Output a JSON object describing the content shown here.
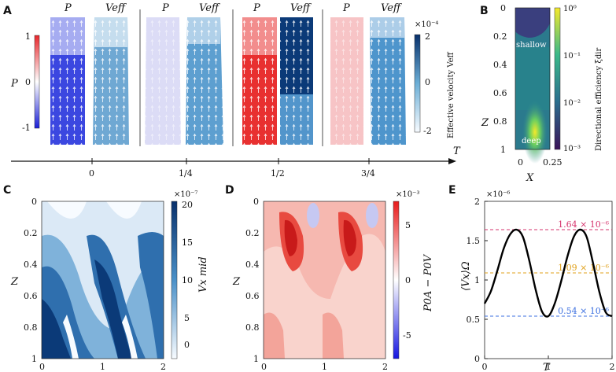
{
  "panels": {
    "A": {
      "label": "A",
      "column_titles": [
        "P",
        "Veff",
        "P",
        "Veff",
        "P",
        "Veff",
        "P",
        "Veff"
      ],
      "time_labels": [
        "0",
        "1/4",
        "1/2",
        "3/4"
      ],
      "time_axis_label": "T",
      "left_colorbar": {
        "label": "P",
        "ticks": [
          "1",
          "0",
          "-1"
        ],
        "colors": [
          "#e8262b",
          "#ffffff",
          "#1a1fd6"
        ]
      },
      "right_colorbar": {
        "label": "Effective velocity Veff",
        "exponent": "×10⁻⁴",
        "ticks": [
          "2",
          "0",
          "-2"
        ],
        "colors": [
          "#08306b",
          "#6baed6",
          "#f7fbff"
        ]
      },
      "snapshot_P_colors": [
        "#3b47e0",
        "#dcdcf6",
        "#e83030",
        "#f7c4c6"
      ],
      "snapshot_V_colors": [
        "#6fa8d3",
        "#5d9fd0",
        "#0b3a78",
        "#4e95cc"
      ]
    },
    "B": {
      "label": "B",
      "xlabel": "X",
      "ylabel": "Z",
      "xticks": [
        "0",
        "0.25"
      ],
      "yticks": [
        "0",
        "0.2",
        "0.4",
        "0.6",
        "0.8",
        "1"
      ],
      "annotations": [
        "shallow",
        "deep"
      ],
      "colorbar": {
        "label": "Directional efficiency ξdir",
        "ticks": [
          "10⁰",
          "10⁻¹",
          "10⁻²",
          "10⁻³"
        ]
      }
    },
    "C": {
      "label": "C",
      "xlabel": "T",
      "ylabel": "Z",
      "xticks": [
        "0",
        "1",
        "2"
      ],
      "yticks": [
        "0",
        "0.2",
        "0.4",
        "0.6",
        "0.8",
        "1"
      ],
      "colorbar": {
        "label": "Vx mid",
        "exponent": "×10⁻⁷",
        "ticks": [
          "20",
          "15",
          "10",
          "5",
          "0"
        ]
      }
    },
    "D": {
      "label": "D",
      "xlabel": "T",
      "ylabel": "Z",
      "xticks": [
        "0",
        "1",
        "2"
      ],
      "yticks": [
        "0",
        "0.2",
        "0.4",
        "0.6",
        "0.8",
        "1"
      ],
      "colorbar": {
        "label": "P0A − P0V",
        "exponent": "×10⁻³",
        "ticks": [
          "5",
          "0",
          "-5"
        ]
      }
    },
    "E": {
      "label": "E"
    }
  },
  "chart_data": {
    "type": "line",
    "title": "",
    "xlabel": "T",
    "ylabel": "⟨Vx⟩Ω",
    "exponent": "×10⁻⁶",
    "xlim": [
      0,
      2
    ],
    "ylim": [
      0,
      2
    ],
    "xticks": [
      "0",
      "1",
      "2"
    ],
    "yticks": [
      "0",
      "0.5",
      "1",
      "1.5",
      "2"
    ],
    "series": [
      {
        "name": "⟨Vx⟩Ω",
        "color": "#000000",
        "x": [
          0,
          0.1,
          0.2,
          0.3,
          0.4,
          0.5,
          0.6,
          0.7,
          0.8,
          0.9,
          1.0,
          1.1,
          1.2,
          1.3,
          1.4,
          1.5,
          1.6,
          1.7,
          1.8,
          1.9,
          2.0
        ],
        "y": [
          0.7,
          0.86,
          1.12,
          1.4,
          1.58,
          1.64,
          1.55,
          1.25,
          0.88,
          0.6,
          0.54,
          0.7,
          0.98,
          1.3,
          1.55,
          1.64,
          1.55,
          1.22,
          0.85,
          0.59,
          0.54
        ]
      }
    ],
    "reference_lines": [
      {
        "y": 1.64,
        "label": "1.64 × 10⁻⁶",
        "color": "#d6336c"
      },
      {
        "y": 1.09,
        "label": "1.09 × 10⁻⁶",
        "color": "#e0a11b"
      },
      {
        "y": 0.54,
        "label": "0.54 × 10⁻⁶",
        "color": "#3b6fe0"
      }
    ]
  }
}
